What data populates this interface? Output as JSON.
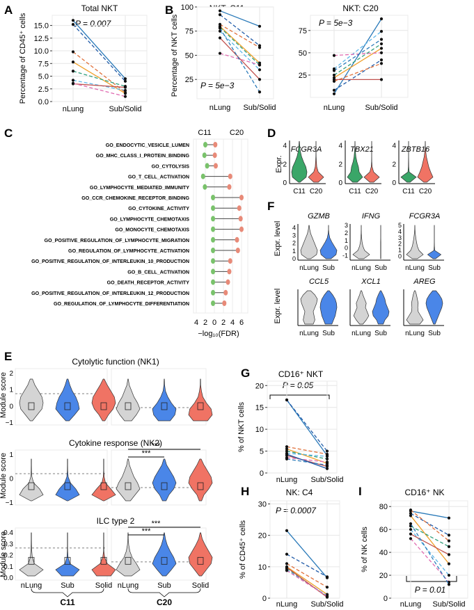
{
  "figure": {
    "panel_letters": [
      "A",
      "B",
      "C",
      "D",
      "E",
      "F",
      "G",
      "H",
      "I"
    ]
  },
  "colors": {
    "grey": "#d4d4d4",
    "blue": "#4a86e8",
    "red": "#f07364",
    "green": "#3aa668",
    "dot_green": "#79c26b",
    "dot_red": "#e88a78",
    "lines": [
      "#2a7ab9",
      "#1f5aa8",
      "#e0703a",
      "#f0a02a",
      "#2e9e7a",
      "#5db6e8",
      "#c0504d",
      "#e06ab0"
    ]
  },
  "chart_data": [
    {
      "id": "A",
      "type": "line",
      "title": "Total NKT",
      "ylabel": "Percentage of CD45⁺ cells",
      "categories": [
        "nLung",
        "Sub/Solid"
      ],
      "ylim": [
        0,
        17
      ],
      "yticks": [
        0.0,
        2.5,
        5.0,
        7.5,
        10.0,
        12.5,
        15.0
      ],
      "ytick_labels": [
        "0.0",
        "2.5",
        "5.0",
        "7.5",
        "10.0",
        "12.5",
        "15.0"
      ],
      "annotation": "P = 0.007",
      "pairs": [
        [
          16.0,
          4.5
        ],
        [
          15.2,
          4.0
        ],
        [
          9.8,
          1.8
        ],
        [
          7.8,
          1.6
        ],
        [
          6.0,
          3.0
        ],
        [
          4.2,
          2.2
        ],
        [
          3.5,
          2.8
        ],
        [
          3.6,
          1.0
        ]
      ]
    },
    {
      "id": "B1",
      "type": "line",
      "title": "NKT: C11",
      "ylabel": "Percentage of NKT cells",
      "categories": [
        "nLung",
        "Sub/Solid"
      ],
      "ylim": [
        5,
        100
      ],
      "yticks": [
        25,
        50,
        75,
        100
      ],
      "ytick_labels": [
        "25",
        "50",
        "75",
        "100"
      ],
      "annotation": "P = 5e−3",
      "pairs": [
        [
          96,
          80
        ],
        [
          92,
          60
        ],
        [
          82,
          58
        ],
        [
          80,
          42
        ],
        [
          79,
          40
        ],
        [
          75,
          35
        ],
        [
          68,
          25
        ],
        [
          52,
          40
        ],
        [
          78,
          12
        ]
      ]
    },
    {
      "id": "B2",
      "type": "line",
      "title": "NKT: C20",
      "ylabel": "",
      "categories": [
        "nLung",
        "Sub/Solid"
      ],
      "ylim": [
        0,
        92
      ],
      "yticks": [
        25,
        50,
        75
      ],
      "ytick_labels": [
        "25",
        "50",
        "75"
      ],
      "annotation": "P = 5e−3",
      "pairs": [
        [
          4,
          88
        ],
        [
          8,
          42
        ],
        [
          18,
          38
        ],
        [
          22,
          55
        ],
        [
          25,
          60
        ],
        [
          32,
          74
        ],
        [
          20,
          20
        ],
        [
          47,
          50
        ],
        [
          30,
          65
        ]
      ]
    },
    {
      "id": "C",
      "type": "dumbbell",
      "columns": [
        "C11",
        "C20"
      ],
      "xlabel": "−log₁₀(FDR)",
      "xticks": [
        "4",
        "2",
        "0",
        "2",
        "4",
        "6"
      ],
      "terms": [
        "GO_ENDOCYTIC_VESICLE_LUMEN",
        "GO_MHC_CLASS_I_PROTEIN_BINDING",
        "GO_CYTOLYSIS",
        "GO_T_CELL_ACTIVATION",
        "GO_LYMPHOCYTE_MEDIATED_IMMUNITY",
        "GO_CCR_CHEMOKINE_RECEPTOR_BINDING",
        "GO_CYTOKINE_ACTIVITY",
        "GO_LYMPHOCYTE_CHEMOTAXIS",
        "GO_MONOCYTE_CHEMOTAXIS",
        "GO_POSITIVE_REGULATION_OF_LYMPHOCYTE_MIGRATION",
        "GO_REGULATION_OF_LYMPHOCYTE_ACTIVATION",
        "GO_POSITIVE_REGULATION_OF_INTERLEUKIN_10_PRODUCTION",
        "GO_B_CELL_ACTIVATION",
        "GO_DEATH_RECEPTOR_ACTIVITY",
        "GO_POSITIVE_REGULATION_OF_INTERLEUKIN_12_PRODUCTION",
        "GO_REGULATION_OF_LYMPHOCYTE_DIFFERENTIATION"
      ],
      "c11": [
        2.0,
        2.2,
        1.6,
        2.5,
        2.1,
        0.3,
        0.3,
        0.3,
        0.3,
        0.3,
        0.3,
        0.3,
        0.3,
        0.3,
        0.3,
        0.3
      ],
      "c20": [
        0.2,
        0.1,
        0.3,
        3.5,
        3.3,
        6.0,
        5.5,
        5.8,
        6.0,
        5.0,
        5.2,
        3.5,
        3.3,
        3.0,
        2.5,
        2.2
      ]
    },
    {
      "id": "D",
      "type": "violin",
      "ylabel": "Expr.",
      "categories": [
        "C11",
        "C20"
      ],
      "yticks": [
        0,
        2,
        4
      ],
      "ytick_labels": [
        "0",
        "2",
        "4"
      ],
      "genes": [
        "FCGR3A",
        "TBX21",
        "ZBTB16"
      ],
      "group_colors": [
        "#3aa668",
        "#f07364"
      ]
    },
    {
      "id": "F",
      "type": "violin",
      "ylabel": "Expr. level",
      "categories": [
        "nLung",
        "Sub"
      ],
      "group_colors": [
        "#d4d4d4",
        "#4a86e8"
      ],
      "genes": [
        "GZMB",
        "IFNG",
        "FCGR3A",
        "CCL5",
        "XCL1",
        "AREG"
      ],
      "ytick_sets": [
        [
          "0",
          "1",
          "2",
          "3",
          "4"
        ],
        [
          "3",
          "2",
          "1",
          "0",
          "-1"
        ],
        [
          "5",
          "4",
          "3",
          "2",
          "1",
          "0"
        ],
        [],
        [],
        []
      ]
    },
    {
      "id": "E",
      "type": "violin",
      "ylabel": "Module score",
      "categories": [
        "nLung",
        "Sub",
        "Solid",
        "nLung",
        "Sub",
        "Solid"
      ],
      "groups": [
        "C11",
        "C20"
      ],
      "rows": [
        {
          "title": "Cytolytic function (NK1)",
          "ytick_labels": [
            "2",
            "1",
            "0",
            "−1"
          ],
          "significance": []
        },
        {
          "title": "Cytokine response (NK2)",
          "ytick_labels": [
            "1",
            "0",
            "−1"
          ],
          "significance": [
            "***",
            "***"
          ]
        },
        {
          "title": "ILC type 2",
          "ytick_labels": [
            "0.4",
            "0.3",
            "0.2",
            "0.1",
            "0.0"
          ],
          "significance": [
            "***",
            "***"
          ]
        }
      ]
    },
    {
      "id": "G",
      "type": "line",
      "title": "CD16⁺ NKT",
      "ylabel": "% of NKT cells",
      "categories": [
        "nLung",
        "Sub/Solid"
      ],
      "ylim": [
        0,
        21
      ],
      "yticks": [
        0,
        5,
        10,
        15,
        20
      ],
      "ytick_labels": [
        "0",
        "5",
        "10",
        "15",
        "20"
      ],
      "annotation": "P = 0.05",
      "pairs": [
        [
          16.7,
          4.0
        ],
        [
          16.7,
          5.0
        ],
        [
          6.0,
          4.3
        ],
        [
          5.5,
          2.2
        ],
        [
          5.0,
          3.2
        ],
        [
          4.5,
          3.8
        ],
        [
          4.0,
          1.5
        ],
        [
          3.5,
          2.5
        ],
        [
          3.2,
          1.8
        ],
        [
          4.3,
          1.0
        ]
      ]
    },
    {
      "id": "H",
      "type": "line",
      "title": "NK: C4",
      "ylabel": "% of CD45⁺ cells",
      "categories": [
        "nLung",
        "Sub/Solid"
      ],
      "ylim": [
        0,
        31
      ],
      "yticks": [
        0,
        10,
        20,
        30
      ],
      "ytick_labels": [
        "0",
        "10",
        "20",
        "30"
      ],
      "annotation": "P = 0.0007",
      "pairs": [
        [
          21.5,
          6.5
        ],
        [
          14,
          6.8
        ],
        [
          11,
          3.5
        ],
        [
          10,
          1.2
        ],
        [
          9.5,
          0.5
        ],
        [
          9.0,
          0.8
        ],
        [
          9.8,
          0.3
        ],
        [
          8.8,
          0.6
        ]
      ]
    },
    {
      "id": "I",
      "type": "line",
      "title": "CD16⁺ NK",
      "ylabel": "% of NK cells",
      "categories": [
        "nLung",
        "Sub/Solid"
      ],
      "ylim": [
        0,
        85
      ],
      "yticks": [
        0,
        20,
        40,
        60,
        80
      ],
      "ytick_labels": [
        "0",
        "20",
        "40",
        "60",
        "80"
      ],
      "annotation": "P = 0.01",
      "pairs": [
        [
          76,
          70
        ],
        [
          74,
          55
        ],
        [
          77,
          50
        ],
        [
          72,
          30
        ],
        [
          63,
          45
        ],
        [
          60,
          20
        ],
        [
          56,
          38
        ],
        [
          52,
          14
        ],
        [
          65,
          12
        ]
      ]
    }
  ]
}
